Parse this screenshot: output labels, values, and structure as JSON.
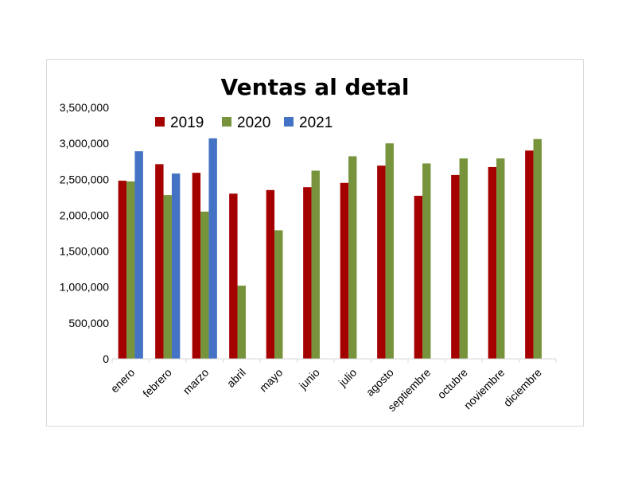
{
  "chart_data": {
    "type": "bar",
    "title": "Ventas al detal",
    "xlabel": "",
    "ylabel": "",
    "ylim": [
      0,
      3500000
    ],
    "yticks": [
      0,
      500000,
      1000000,
      1500000,
      2000000,
      2500000,
      3000000,
      3500000
    ],
    "ytick_labels": [
      "0",
      "500,000",
      "1,000,000",
      "1,500,000",
      "2,000,000",
      "2,500,000",
      "3,000,000",
      "3,500,000"
    ],
    "grid": false,
    "legend_position": "top",
    "categories": [
      "enero",
      "febrero",
      "marzo",
      "abril",
      "mayo",
      "junio",
      "julio",
      "agosto",
      "septiembre",
      "octubre",
      "noviembre",
      "diciembre"
    ],
    "series": [
      {
        "name": "2019",
        "color": "#a50000",
        "values": [
          2480000,
          2710000,
          2590000,
          2300000,
          2350000,
          2390000,
          2450000,
          2690000,
          2270000,
          2560000,
          2670000,
          2900000
        ]
      },
      {
        "name": "2020",
        "color": "#77933c",
        "values": [
          2470000,
          2280000,
          2050000,
          1020000,
          1790000,
          2620000,
          2820000,
          3000000,
          2720000,
          2790000,
          2790000,
          3060000
        ]
      },
      {
        "name": "2021",
        "color": "#4472c4",
        "values": [
          2890000,
          2580000,
          3070000,
          null,
          null,
          null,
          null,
          null,
          null,
          null,
          null,
          null
        ]
      }
    ]
  }
}
